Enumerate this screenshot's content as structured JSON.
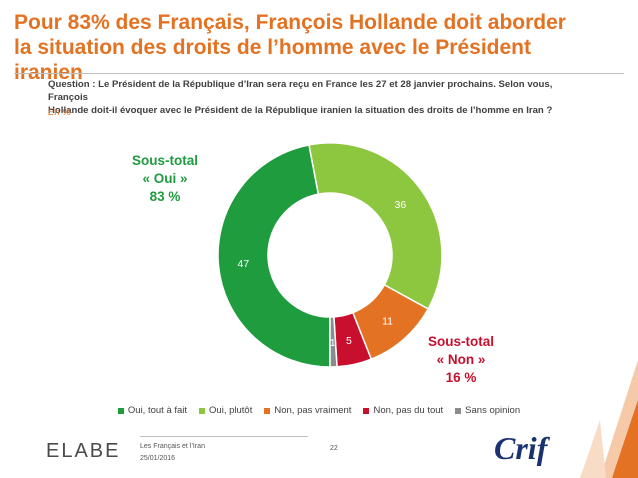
{
  "header": {
    "title_line1": "Pour 83% des Français, François Hollande doit aborder",
    "title_line2": "la situation des droits de l’homme avec le Président iranien",
    "question_line1": "Question : Le Président de la République d’Iran sera reçu en France les 27 et 28 janvier prochains. Selon vous, François",
    "question_line2": "Hollande doit-il évoquer avec le Président de la République iranien la situation des droits de l’homme en Iran ?",
    "unit": "En %"
  },
  "subtotals": {
    "oui": {
      "line1": "Sous-total",
      "line2": "« Oui »",
      "line3": "83 %"
    },
    "non": {
      "line1": "Sous-total",
      "line2": "« Non »",
      "line3": "16 %"
    }
  },
  "chart_data": {
    "type": "pie",
    "donut": true,
    "categories": [
      "Oui, tout à fait",
      "Oui, plutôt",
      "Non, pas vraiment",
      "Non, pas du tout",
      "Sans opinion"
    ],
    "values": [
      47,
      36,
      11,
      5,
      1
    ],
    "colors": [
      "#1e9c3e",
      "#8dc63f",
      "#e37222",
      "#c8102e",
      "#8c8c8c"
    ],
    "label_colors": [
      "#ffffff",
      "#ffffff",
      "#ffffff",
      "#ffffff",
      "#ffffff"
    ],
    "legend_position": "bottom",
    "start_angle_deg": 180
  },
  "footer": {
    "logo": "ELABE",
    "line1": "Les Français et l’Iran",
    "line2": "25/01/2016",
    "page": "22",
    "brand": "Crif"
  }
}
